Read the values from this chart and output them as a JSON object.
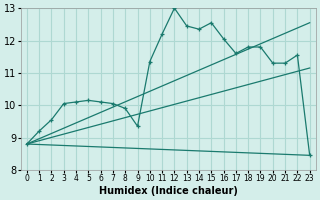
{
  "background_color": "#d4eeea",
  "grid_color": "#aed8d2",
  "line_color": "#1a7a6e",
  "xlabel": "Humidex (Indice chaleur)",
  "xlim": [
    -0.5,
    23.5
  ],
  "ylim": [
    8,
    13
  ],
  "yticks": [
    8,
    9,
    10,
    11,
    12,
    13
  ],
  "xticks": [
    0,
    1,
    2,
    3,
    4,
    5,
    6,
    7,
    8,
    9,
    10,
    11,
    12,
    13,
    14,
    15,
    16,
    17,
    18,
    19,
    20,
    21,
    22,
    23
  ],
  "lines": [
    {
      "x": [
        0,
        1,
        2,
        3,
        4,
        5,
        6,
        7,
        8,
        9,
        10,
        11,
        12,
        13,
        14,
        15,
        16,
        17,
        18,
        19,
        20,
        21,
        22,
        23
      ],
      "y": [
        8.8,
        9.2,
        9.55,
        10.05,
        10.1,
        10.15,
        10.1,
        10.05,
        9.9,
        9.35,
        11.35,
        12.2,
        13.0,
        12.45,
        12.35,
        12.55,
        12.05,
        11.6,
        11.8,
        11.8,
        11.3,
        11.3,
        11.55,
        8.45
      ],
      "marker": "+"
    },
    {
      "x": [
        0,
        23
      ],
      "y": [
        8.8,
        12.55
      ],
      "marker": null
    },
    {
      "x": [
        0,
        23
      ],
      "y": [
        8.8,
        11.15
      ],
      "marker": null
    },
    {
      "x": [
        0,
        23
      ],
      "y": [
        8.8,
        8.45
      ],
      "marker": null
    }
  ]
}
